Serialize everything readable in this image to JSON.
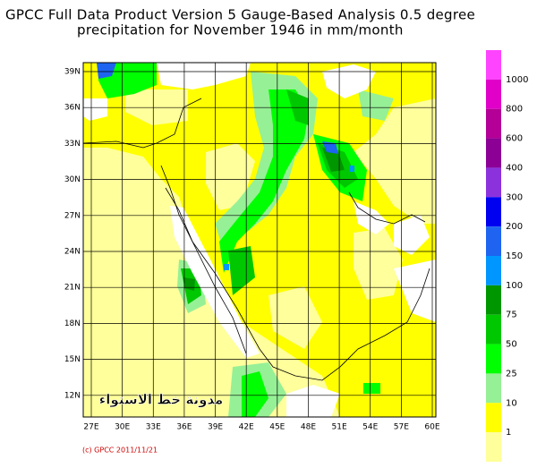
{
  "title": [
    "GPCC Full Data Product Version 5 Gauge-Based Analysis 0.5 degree",
    "precipitation for November  1946 in mm/month"
  ],
  "lat_labels": [
    "39N",
    "36N",
    "33N",
    "30N",
    "27N",
    "24N",
    "21N",
    "18N",
    "15N",
    "12N"
  ],
  "lon_labels": [
    "27E",
    "30E",
    "33E",
    "36E",
    "39E",
    "42E",
    "45E",
    "48E",
    "51E",
    "54E",
    "57E",
    "60E"
  ],
  "legend": {
    "colors": [
      "#ff44ff",
      "#e000c8",
      "#b40096",
      "#8c0096",
      "#8c32dc",
      "#0000f0",
      "#1e64f0",
      "#0096ff",
      "#009600",
      "#00c800",
      "#00ff00",
      "#96f096",
      "#ffff00",
      "#ffff9b"
    ],
    "labels": [
      "1000",
      "800",
      "600",
      "400",
      "300",
      "200",
      "150",
      "100",
      "75",
      "50",
      "25",
      "10",
      "1"
    ]
  },
  "watermark": "مدونة خط الاستواء",
  "copyright": "(c) GPCC 2011/11/21"
}
